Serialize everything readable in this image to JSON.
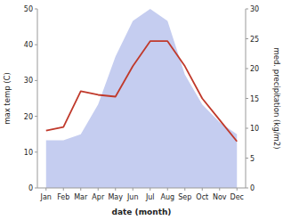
{
  "chart_data": {
    "type": "line",
    "categories": [
      "Jan",
      "Feb",
      "Mar",
      "Apr",
      "May",
      "Jun",
      "Jul",
      "Aug",
      "Sep",
      "Oct",
      "Nov",
      "Dec"
    ],
    "series": [
      {
        "type": "area",
        "axis": "y2",
        "color": "#c5cdf0",
        "values": [
          8,
          8,
          9,
          14,
          22,
          28,
          30,
          28,
          19,
          14,
          11,
          9
        ]
      },
      {
        "type": "line",
        "color": "#c0392b",
        "values": [
          16,
          17,
          27,
          26,
          25.5,
          34,
          41,
          41,
          34,
          25,
          19,
          13
        ]
      }
    ],
    "xlabel": "date (month)",
    "ylabel": "max temp (C)",
    "y2label": "med. precipitation (kg/m2)",
    "ylim": [
      0,
      50
    ],
    "yticks": [
      0,
      10,
      20,
      30,
      40,
      50
    ],
    "y2lim": [
      0,
      30
    ],
    "y2ticks": [
      0,
      5,
      10,
      15,
      20,
      25,
      30
    ],
    "grid": false
  }
}
